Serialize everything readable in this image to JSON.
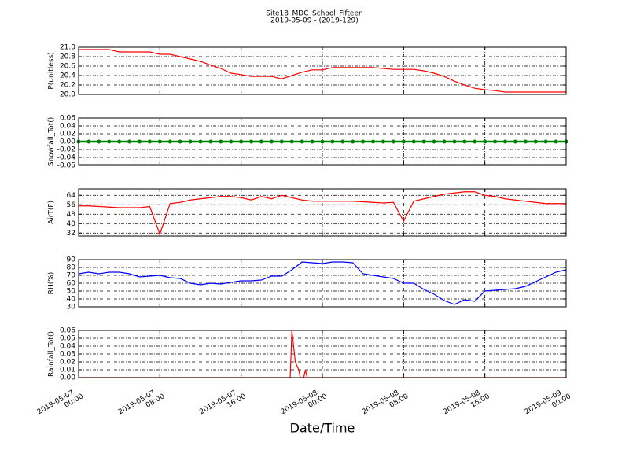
{
  "chart_data": [
    {
      "type": "line",
      "title": "Site18_MDC_School_Fifteen",
      "subtitle": "2019-05-09 - (2019-129)",
      "ylabel": "P(unitless)",
      "x": [
        "2019-05-07 00:00",
        "2019-05-07 01:00",
        "2019-05-07 02:00",
        "2019-05-07 03:00",
        "2019-05-07 04:00",
        "2019-05-07 05:00",
        "2019-05-07 06:00",
        "2019-05-07 07:00",
        "2019-05-07 08:00",
        "2019-05-07 09:00",
        "2019-05-07 10:00",
        "2019-05-07 11:00",
        "2019-05-07 12:00",
        "2019-05-07 13:00",
        "2019-05-07 14:00",
        "2019-05-07 15:00",
        "2019-05-07 16:00",
        "2019-05-07 17:00",
        "2019-05-07 18:00",
        "2019-05-07 19:00",
        "2019-05-07 20:00",
        "2019-05-07 21:00",
        "2019-05-07 22:00",
        "2019-05-07 23:00",
        "2019-05-08 00:00",
        "2019-05-08 01:00",
        "2019-05-08 02:00",
        "2019-05-08 03:00",
        "2019-05-08 04:00",
        "2019-05-08 05:00",
        "2019-05-08 06:00",
        "2019-05-08 07:00",
        "2019-05-08 08:00",
        "2019-05-08 09:00",
        "2019-05-08 10:00",
        "2019-05-08 11:00",
        "2019-05-08 12:00",
        "2019-05-08 13:00",
        "2019-05-08 14:00",
        "2019-05-08 15:00",
        "2019-05-08 16:00",
        "2019-05-08 17:00",
        "2019-05-08 18:00",
        "2019-05-08 19:00",
        "2019-05-08 20:00",
        "2019-05-08 21:00",
        "2019-05-08 22:00",
        "2019-05-08 23:00",
        "2019-05-09 00:00"
      ],
      "series": [
        {
          "color": "#ff0000",
          "values": [
            20.95,
            20.95,
            20.95,
            20.95,
            20.9,
            20.9,
            20.9,
            20.9,
            20.85,
            20.85,
            20.8,
            20.75,
            20.7,
            20.62,
            20.55,
            20.45,
            20.42,
            20.38,
            20.38,
            20.38,
            20.33,
            20.4,
            20.47,
            20.52,
            20.52,
            20.57,
            20.57,
            20.57,
            20.57,
            20.57,
            20.55,
            20.53,
            20.53,
            20.53,
            20.5,
            20.45,
            20.38,
            20.28,
            20.2,
            20.13,
            20.1,
            20.08,
            20.05,
            20.05,
            20.05,
            20.05,
            20.05,
            20.05,
            20.05
          ]
        }
      ],
      "xlim": [
        "2019-05-07 00:00",
        "2019-05-09 00:00"
      ],
      "xticks": [
        "2019-05-07 00:00",
        "2019-05-07 08:00",
        "2019-05-07 16:00",
        "2019-05-08 00:00",
        "2019-05-08 08:00",
        "2019-05-08 16:00",
        "2019-05-09 00:00"
      ],
      "ylim": [
        20.0,
        21.0
      ],
      "yticks": [
        {
          "value": 20.0,
          "label": "20.0"
        },
        20.2,
        20.4,
        20.6,
        20.8,
        {
          "value": 21.0,
          "label": "21.0"
        }
      ],
      "grid": true
    },
    {
      "type": "line",
      "ylabel": "Snowfall_Tot()",
      "marker": "o",
      "x": [
        "2019-05-07 00:00",
        "2019-05-07 01:00",
        "2019-05-07 02:00",
        "2019-05-07 03:00",
        "2019-05-07 04:00",
        "2019-05-07 05:00",
        "2019-05-07 06:00",
        "2019-05-07 07:00",
        "2019-05-07 08:00",
        "2019-05-07 09:00",
        "2019-05-07 10:00",
        "2019-05-07 11:00",
        "2019-05-07 12:00",
        "2019-05-07 13:00",
        "2019-05-07 14:00",
        "2019-05-07 15:00",
        "2019-05-07 16:00",
        "2019-05-07 17:00",
        "2019-05-07 18:00",
        "2019-05-07 19:00",
        "2019-05-07 20:00",
        "2019-05-07 21:00",
        "2019-05-07 22:00",
        "2019-05-07 23:00",
        "2019-05-08 00:00",
        "2019-05-08 01:00",
        "2019-05-08 02:00",
        "2019-05-08 03:00",
        "2019-05-08 04:00",
        "2019-05-08 05:00",
        "2019-05-08 06:00",
        "2019-05-08 07:00",
        "2019-05-08 08:00",
        "2019-05-08 09:00",
        "2019-05-08 10:00",
        "2019-05-08 11:00",
        "2019-05-08 12:00",
        "2019-05-08 13:00",
        "2019-05-08 14:00",
        "2019-05-08 15:00",
        "2019-05-08 16:00",
        "2019-05-08 17:00",
        "2019-05-08 18:00",
        "2019-05-08 19:00",
        "2019-05-08 20:00",
        "2019-05-08 21:00",
        "2019-05-08 22:00",
        "2019-05-08 23:00",
        "2019-05-09 00:00"
      ],
      "series": [
        {
          "color": "#008000",
          "values": [
            0,
            0,
            0,
            0,
            0,
            0,
            0,
            0,
            0,
            0,
            0,
            0,
            0,
            0,
            0,
            0,
            0,
            0,
            0,
            0,
            0,
            0,
            0,
            0,
            0,
            0,
            0,
            0,
            0,
            0,
            0,
            0,
            0,
            0,
            0,
            0,
            0,
            0,
            0,
            0,
            0,
            0,
            0,
            0,
            0,
            0,
            0,
            0,
            0
          ]
        }
      ],
      "xlim": [
        "2019-05-07 00:00",
        "2019-05-09 00:00"
      ],
      "xticks": [
        "2019-05-07 00:00",
        "2019-05-07 08:00",
        "2019-05-07 16:00",
        "2019-05-08 00:00",
        "2019-05-08 08:00",
        "2019-05-08 16:00",
        "2019-05-09 00:00"
      ],
      "ylim": [
        -0.06,
        0.06
      ],
      "yticks": [
        -0.06,
        -0.04,
        -0.02,
        {
          "value": 0,
          "label": "0.00"
        },
        0.02,
        0.04,
        0.06
      ],
      "grid": true
    },
    {
      "type": "line",
      "ylabel": "AirT(F)",
      "x": [
        "2019-05-07 00:00",
        "2019-05-07 01:00",
        "2019-05-07 02:00",
        "2019-05-07 03:00",
        "2019-05-07 04:00",
        "2019-05-07 05:00",
        "2019-05-07 06:00",
        "2019-05-07 07:00",
        "2019-05-07 08:00",
        "2019-05-07 09:00",
        "2019-05-07 10:00",
        "2019-05-07 11:00",
        "2019-05-07 12:00",
        "2019-05-07 13:00",
        "2019-05-07 14:00",
        "2019-05-07 15:00",
        "2019-05-07 16:00",
        "2019-05-07 17:00",
        "2019-05-07 18:00",
        "2019-05-07 19:00",
        "2019-05-07 20:00",
        "2019-05-07 21:00",
        "2019-05-07 22:00",
        "2019-05-07 23:00",
        "2019-05-08 00:00",
        "2019-05-08 01:00",
        "2019-05-08 02:00",
        "2019-05-08 03:00",
        "2019-05-08 04:00",
        "2019-05-08 05:00",
        "2019-05-08 06:00",
        "2019-05-08 07:00",
        "2019-05-08 08:00",
        "2019-05-08 09:00",
        "2019-05-08 10:00",
        "2019-05-08 11:00",
        "2019-05-08 12:00",
        "2019-05-08 13:00",
        "2019-05-08 14:00",
        "2019-05-08 15:00",
        "2019-05-08 16:00",
        "2019-05-08 17:00",
        "2019-05-08 18:00",
        "2019-05-08 19:00",
        "2019-05-08 20:00",
        "2019-05-08 21:00",
        "2019-05-08 22:00",
        "2019-05-08 23:00",
        "2019-05-09 00:00"
      ],
      "series": [
        {
          "color": "#ff0000",
          "values": [
            55,
            55,
            54.5,
            54,
            53.5,
            53.5,
            53.5,
            54.5,
            31,
            57,
            58,
            60,
            61,
            62,
            63,
            63,
            62,
            60,
            63,
            61,
            64,
            62,
            60,
            59,
            59,
            59,
            59,
            59,
            58.5,
            58,
            57.5,
            58,
            42,
            59,
            61,
            63,
            65,
            66,
            67,
            67,
            64,
            63,
            61,
            60,
            59,
            58,
            57,
            57,
            57
          ]
        }
      ],
      "xlim": [
        "2019-05-07 00:00",
        "2019-05-09 00:00"
      ],
      "xticks": [
        "2019-05-07 00:00",
        "2019-05-07 08:00",
        "2019-05-07 16:00",
        "2019-05-08 00:00",
        "2019-05-08 08:00",
        "2019-05-08 16:00",
        "2019-05-09 00:00"
      ],
      "ylim": [
        29.5,
        69.5
      ],
      "yticks": [
        32,
        40,
        48,
        56,
        64
      ],
      "grid": true
    },
    {
      "type": "line",
      "ylabel": "RH(%)",
      "x": [
        "2019-05-07 00:00",
        "2019-05-07 01:00",
        "2019-05-07 02:00",
        "2019-05-07 03:00",
        "2019-05-07 04:00",
        "2019-05-07 05:00",
        "2019-05-07 06:00",
        "2019-05-07 07:00",
        "2019-05-07 08:00",
        "2019-05-07 09:00",
        "2019-05-07 10:00",
        "2019-05-07 11:00",
        "2019-05-07 12:00",
        "2019-05-07 13:00",
        "2019-05-07 14:00",
        "2019-05-07 15:00",
        "2019-05-07 16:00",
        "2019-05-07 17:00",
        "2019-05-07 18:00",
        "2019-05-07 19:00",
        "2019-05-07 20:00",
        "2019-05-07 21:00",
        "2019-05-07 22:00",
        "2019-05-07 23:00",
        "2019-05-08 00:00",
        "2019-05-08 01:00",
        "2019-05-08 02:00",
        "2019-05-08 03:00",
        "2019-05-08 04:00",
        "2019-05-08 05:00",
        "2019-05-08 06:00",
        "2019-05-08 07:00",
        "2019-05-08 08:00",
        "2019-05-08 09:00",
        "2019-05-08 10:00",
        "2019-05-08 11:00",
        "2019-05-08 12:00",
        "2019-05-08 13:00",
        "2019-05-08 14:00",
        "2019-05-08 15:00",
        "2019-05-08 16:00",
        "2019-05-08 17:00",
        "2019-05-08 18:00",
        "2019-05-08 19:00",
        "2019-05-08 20:00",
        "2019-05-08 21:00",
        "2019-05-08 22:00",
        "2019-05-08 23:00",
        "2019-05-09 00:00"
      ],
      "series": [
        {
          "color": "#0000ff",
          "values": [
            72,
            74,
            72,
            74,
            74,
            72,
            68,
            69,
            70,
            67,
            66,
            60,
            58,
            60,
            59,
            61,
            63,
            63,
            64,
            69,
            69,
            77,
            87,
            86,
            85,
            87,
            87,
            86,
            72,
            70,
            68,
            66,
            60,
            60,
            52,
            46,
            38,
            33,
            39,
            37,
            50,
            51,
            52,
            53,
            56,
            62,
            68,
            74,
            77
          ]
        }
      ],
      "xlim": [
        "2019-05-07 00:00",
        "2019-05-09 00:00"
      ],
      "xticks": [
        "2019-05-07 00:00",
        "2019-05-07 08:00",
        "2019-05-07 16:00",
        "2019-05-08 00:00",
        "2019-05-08 08:00",
        "2019-05-08 16:00",
        "2019-05-09 00:00"
      ],
      "ylim": [
        30,
        90
      ],
      "yticks": [
        30,
        40,
        50,
        60,
        70,
        80,
        90
      ],
      "grid": true
    },
    {
      "type": "line",
      "ylabel": "Rainfall_Tot()",
      "xlabel": "Date/Time",
      "x": [
        "2019-05-07 00:00",
        "2019-05-07 20:50",
        "2019-05-07 21:00",
        "2019-05-07 21:20",
        "2019-05-07 21:40",
        "2019-05-07 21:50",
        "2019-05-07 22:10",
        "2019-05-07 22:20",
        "2019-05-07 22:30",
        "2019-05-09 00:00"
      ],
      "series": [
        {
          "color": "#ff0000",
          "values": [
            0,
            0,
            0.06,
            0.02,
            0.01,
            0,
            0,
            0.01,
            0,
            0
          ]
        }
      ],
      "xlim": [
        "2019-05-07 00:00",
        "2019-05-09 00:00"
      ],
      "xticks": [
        "2019-05-07 00:00",
        "2019-05-07 08:00",
        "2019-05-07 16:00",
        "2019-05-08 00:00",
        "2019-05-08 08:00",
        "2019-05-08 16:00",
        "2019-05-09 00:00"
      ],
      "ylim": [
        0,
        0.06
      ],
      "yticks": [
        {
          "value": 0,
          "label": "0.00"
        },
        0.01,
        0.02,
        0.03,
        0.04,
        0.05,
        0.06
      ],
      "grid": true
    }
  ]
}
